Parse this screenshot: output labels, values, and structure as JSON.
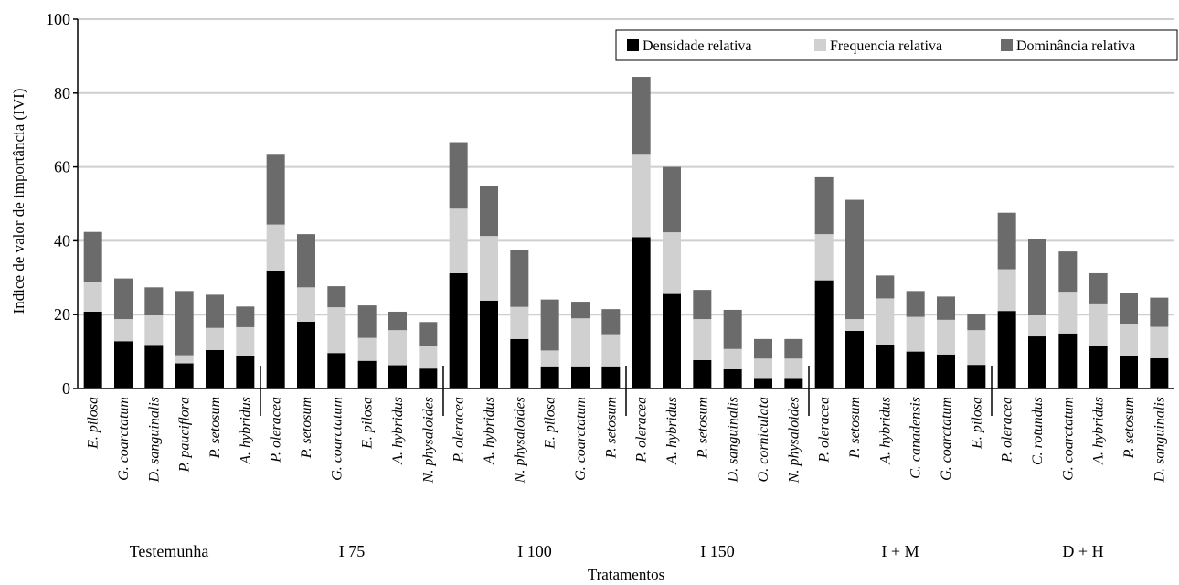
{
  "chart_data": {
    "type": "bar",
    "stacked": true,
    "title": "",
    "xlabel": "Tratamentos",
    "ylabel": "Indice de valor de importância (IVI)",
    "ylim": [
      0,
      100
    ],
    "yticks": [
      0,
      20,
      40,
      60,
      80,
      100
    ],
    "grid": true,
    "legend_position": "top-right",
    "colors": {
      "Densidade relativa": "#000000",
      "Frequencia relativa": "#d0d0d0",
      "Dominância relativa": "#6b6b6b"
    },
    "groups": [
      {
        "label": "Testemunha",
        "start": 0,
        "count": 6
      },
      {
        "label": "I 75",
        "start": 6,
        "count": 6
      },
      {
        "label": "I 100",
        "start": 12,
        "count": 6
      },
      {
        "label": "I 150",
        "start": 18,
        "count": 6
      },
      {
        "label": "I + M",
        "start": 24,
        "count": 6
      },
      {
        "label": "D + H",
        "start": 30,
        "count": 6
      }
    ],
    "categories": [
      "E. pilosa",
      "G. coarctatum",
      "D. sanguinalis",
      "P. pauciflora",
      "P. setosum",
      "A. hybridus",
      "P. oleracea",
      "P. setosum",
      "G. coarctatum",
      "E. pilosa",
      "A. hybridus",
      "N. physaloides",
      "P. oleracea",
      "A. hybridus",
      "N. physaloides",
      "E. pilosa",
      "G. coarctatum",
      "P. setosum",
      "P. oleracea",
      "A. hybridus",
      "P. setosum",
      "D. sanguinalis",
      "O. corniculata",
      "N. physaloides",
      "P. oleracea",
      "P. setosum",
      "A. hybridus",
      "C. canadensis",
      "G. coarctatum",
      "E. pilosa",
      "P. oleracea",
      "C. rotundus",
      "G. coarctatum",
      "A. hybridus",
      "P. setosum",
      "D. sanguinalis"
    ],
    "series": [
      {
        "name": "Densidade relativa",
        "values": [
          20.8,
          12.8,
          11.8,
          6.8,
          10.4,
          8.7,
          31.8,
          18.1,
          9.6,
          7.5,
          6.3,
          5.4,
          31.2,
          23.8,
          13.4,
          6.0,
          6.0,
          6.0,
          41.0,
          25.6,
          7.7,
          5.2,
          2.6,
          2.6,
          29.3,
          15.6,
          11.9,
          10.0,
          9.2,
          6.4,
          21.0,
          14.1,
          14.9,
          11.5,
          8.9,
          8.2
        ]
      },
      {
        "name": "Frequencia relativa",
        "values": [
          8.0,
          6.0,
          8.0,
          2.2,
          6.0,
          7.9,
          12.6,
          9.3,
          12.4,
          6.2,
          9.5,
          6.2,
          17.5,
          17.5,
          8.7,
          4.3,
          13.0,
          8.7,
          22.3,
          16.7,
          11.1,
          5.5,
          5.5,
          5.5,
          12.5,
          3.2,
          12.5,
          9.4,
          9.4,
          9.4,
          11.3,
          5.7,
          11.3,
          11.3,
          8.5,
          8.5
        ]
      },
      {
        "name": "Dominância relativa",
        "values": [
          13.6,
          11.0,
          7.6,
          17.4,
          9.0,
          5.6,
          18.9,
          14.4,
          5.7,
          8.8,
          5.0,
          6.4,
          18.0,
          13.6,
          15.4,
          13.8,
          4.5,
          6.8,
          21.1,
          17.7,
          7.9,
          10.6,
          5.3,
          5.3,
          15.4,
          32.3,
          6.2,
          7.0,
          6.3,
          4.5,
          15.3,
          20.7,
          10.9,
          8.4,
          8.4,
          7.9
        ]
      }
    ]
  }
}
